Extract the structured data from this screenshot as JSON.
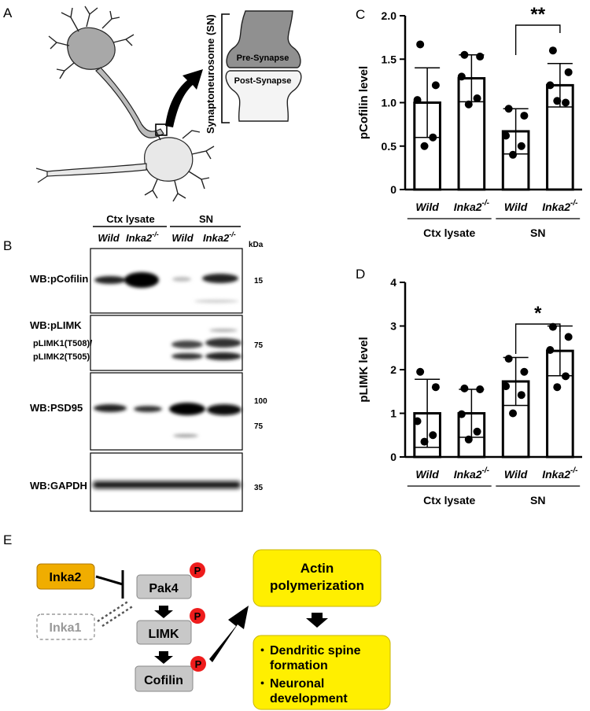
{
  "panels": {
    "A": "A",
    "B": "B",
    "C": "C",
    "D": "D",
    "E": "E"
  },
  "panel_a": {
    "sn_label": "Synaptoneurosome (SN)",
    "pre_synapse": "Pre-Synapse",
    "post_synapse": "Post-Synapse"
  },
  "panel_b": {
    "group_ctx": "Ctx lysate",
    "group_sn": "SN",
    "lane_wild": "Wild",
    "lane_ko_base": "Inka2",
    "ko_superscript": "-/-",
    "kda": "kDa",
    "blots": [
      {
        "label": "WB:pCofilin",
        "markers": [
          "15"
        ]
      },
      {
        "label": "WB:pLIMK",
        "sublabels": [
          "pLIMK1(T508)/",
          "pLIMK2(T505)"
        ],
        "markers": [
          "75"
        ]
      },
      {
        "label": "WB:PSD95",
        "markers": [
          "100",
          "75"
        ]
      },
      {
        "label": "WB:GAPDH",
        "markers": [
          "35"
        ]
      }
    ]
  },
  "chart_data": [
    {
      "panel": "C",
      "type": "bar",
      "ylabel": "pCofilin level",
      "ylim": [
        0,
        2.0
      ],
      "yticks": [
        "0",
        "0.5",
        "1.0",
        "1.5",
        "2.0"
      ],
      "categories": [
        "Wild",
        "Inka2-/-",
        "Wild",
        "Inka2-/-"
      ],
      "groups": [
        "Ctx lysate",
        "SN"
      ],
      "values": [
        1.0,
        1.28,
        0.67,
        1.2
      ],
      "sd": [
        0.4,
        0.27,
        0.26,
        0.25
      ],
      "points": [
        [
          1.67,
          1.2,
          1.03,
          0.6,
          0.5
        ],
        [
          1.55,
          1.53,
          1.3,
          1.05,
          0.98
        ],
        [
          0.93,
          0.85,
          0.62,
          0.5,
          0.4
        ],
        [
          1.6,
          1.35,
          1.2,
          1.0,
          1.02
        ]
      ],
      "significance": {
        "between": [
          2,
          3
        ],
        "label": "**"
      }
    },
    {
      "panel": "D",
      "type": "bar",
      "ylabel": "pLIMK level",
      "ylim": [
        0,
        4
      ],
      "yticks": [
        "0",
        "1",
        "2",
        "3",
        "4"
      ],
      "categories": [
        "Wild",
        "Inka2-/-",
        "Wild",
        "Inka2-/-"
      ],
      "groups": [
        "Ctx lysate",
        "SN"
      ],
      "values": [
        1.0,
        1.0,
        1.73,
        2.43
      ],
      "sd": [
        0.78,
        0.55,
        0.55,
        0.57
      ],
      "points": [
        [
          1.95,
          1.6,
          0.82,
          0.5,
          0.35
        ],
        [
          1.57,
          1.55,
          0.98,
          0.58,
          0.4
        ],
        [
          2.25,
          1.95,
          1.62,
          1.42,
          1.0
        ],
        [
          2.98,
          2.75,
          2.45,
          1.85,
          1.6
        ]
      ],
      "significance": {
        "between": [
          2,
          3
        ],
        "label": "*"
      }
    }
  ],
  "panel_e": {
    "inka2": "Inka2",
    "inka1": "Inka1",
    "pak4": "Pak4",
    "limk": "LIMK",
    "cofilin": "Cofilin",
    "p": "P",
    "actin_line1": "Actin",
    "actin_line2": "polymerization",
    "outcome_bullet": "・",
    "outcome1_line1": "Dendritic spine",
    "outcome1_line2": "formation",
    "outcome2_line1": "Neuronal",
    "outcome2_line2": "development",
    "colors": {
      "inka2": "#f0ad00",
      "yellow": "#ffef00",
      "phospho": "#ee1c1c",
      "node": "#c8c8c8"
    }
  }
}
